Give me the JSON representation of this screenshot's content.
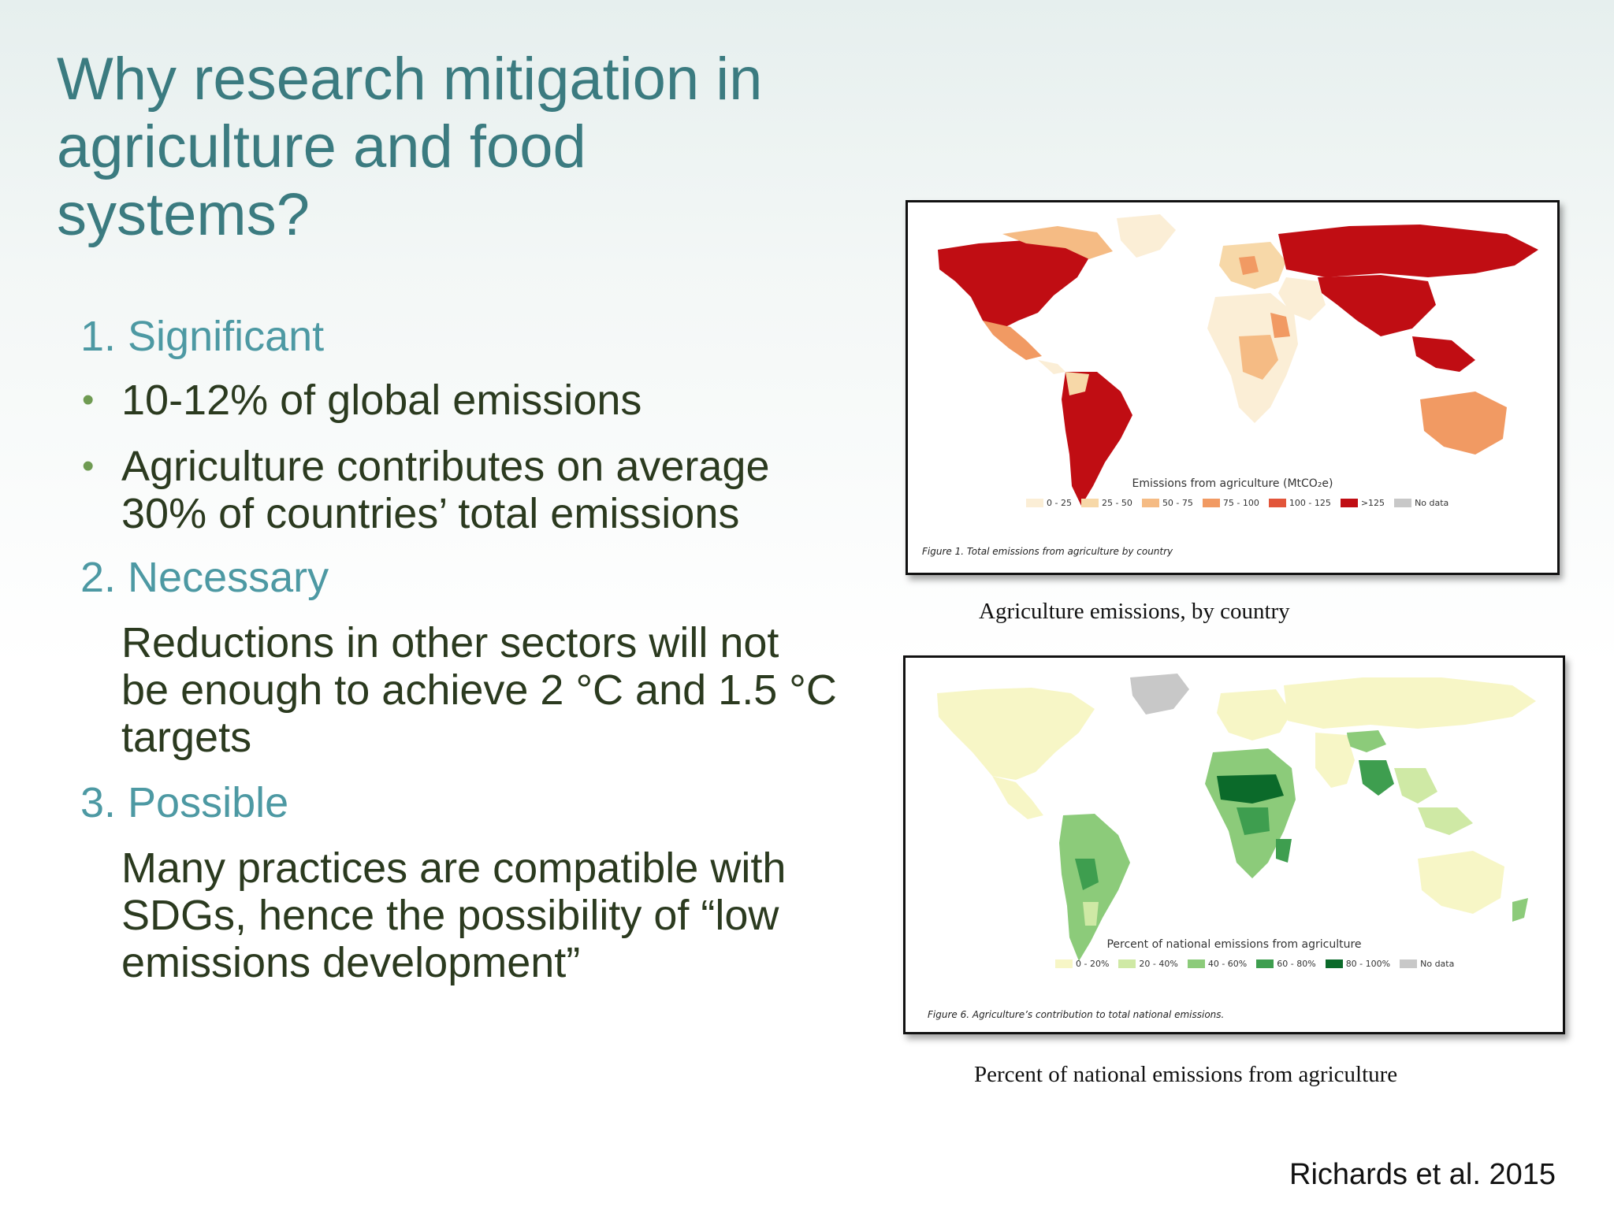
{
  "slide": {
    "title": "Why research mitigation in agriculture and food systems?",
    "sections": [
      {
        "heading": "1. Significant",
        "bullets": [
          "10-12% of global emissions",
          "Agriculture contributes on average 30% of countries’ total emissions"
        ]
      },
      {
        "heading": "2. Necessary",
        "text": "Reductions in other sectors will not be enough to achieve 2 °C and 1.5 °C targets"
      },
      {
        "heading": "3. Possible",
        "text": "Many practices are compatible with SDGs, hence the possibility of “low emissions development”"
      }
    ],
    "citation": "Richards et al. 2015"
  },
  "figure1": {
    "legend_title": "Emissions from agriculture (MtCO₂e)",
    "legend": [
      {
        "label": "0 - 25",
        "color": "#fbeed6"
      },
      {
        "label": "25 - 50",
        "color": "#f7d8a8"
      },
      {
        "label": "50 - 75",
        "color": "#f5bb84"
      },
      {
        "label": "75 - 100",
        "color": "#f19a63"
      },
      {
        "label": "100 - 125",
        "color": "#e2553a"
      },
      {
        "label": ">125",
        "color": "#c00d13"
      },
      {
        "label": "No data",
        "color": "#c8c8c8"
      }
    ],
    "note": "Figure 1. Total emissions from agriculture by country",
    "caption": "Agriculture emissions, by country"
  },
  "figure2": {
    "legend_title": "Percent of national emissions from agriculture",
    "legend": [
      {
        "label": "0 - 20%",
        "color": "#f7f6c6"
      },
      {
        "label": "20 - 40%",
        "color": "#cfe9a5"
      },
      {
        "label": "40 - 60%",
        "color": "#8ccb7a"
      },
      {
        "label": "60 - 80%",
        "color": "#3e9e4f"
      },
      {
        "label": "80 - 100%",
        "color": "#0b6a2a"
      },
      {
        "label": "No data",
        "color": "#c8c8c8"
      }
    ],
    "note": "Figure 6. Agriculture’s contribution to total national emissions.",
    "caption": "Percent of national emissions from agriculture"
  }
}
